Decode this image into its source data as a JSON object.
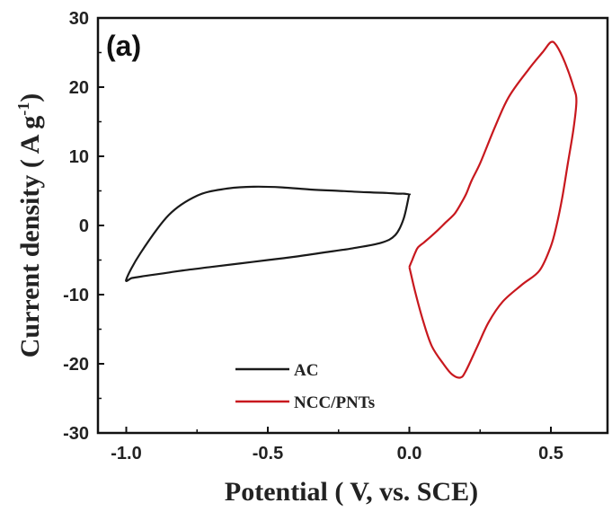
{
  "chart_data": {
    "type": "line",
    "panel_label": "(a)",
    "xlabel": "Potential ( V, vs. SCE)",
    "ylabel_main": "Current density ( A g",
    "ylabel_sup": "-1",
    "ylabel_end": ")",
    "xlim": [
      -1.1,
      0.7
    ],
    "ylim": [
      -30,
      30
    ],
    "xticks": [
      -1.0,
      -0.5,
      0.0,
      0.5
    ],
    "xtick_labels": [
      "-1.0",
      "-0.5",
      "0.0",
      "0.5"
    ],
    "yticks": [
      -30,
      -20,
      -10,
      0,
      10,
      20,
      30
    ],
    "ytick_labels": [
      "-30",
      "-20",
      "-10",
      "0",
      "10",
      "20",
      "30"
    ],
    "legend_position": "lower-center",
    "series": [
      {
        "name": "AC",
        "color": "#1a1a1a",
        "x": [
          0.0,
          -0.02,
          -0.05,
          -0.1,
          -0.2,
          -0.3,
          -0.4,
          -0.5,
          -0.6,
          -0.7,
          -0.8,
          -0.85,
          -0.9,
          -0.95,
          -0.98,
          -1.0,
          -0.95,
          -0.85,
          -0.75,
          -0.65,
          -0.55,
          -0.45,
          -0.35,
          -0.25,
          -0.15,
          -0.08,
          -0.04,
          -0.02,
          0.0,
          0.0
        ],
        "y": [
          4.6,
          1.0,
          -1.4,
          -2.5,
          -3.3,
          -3.9,
          -4.5,
          -5.0,
          -5.5,
          -6.0,
          -6.5,
          -6.8,
          -7.1,
          -7.4,
          -7.6,
          -7.8,
          -4.0,
          1.5,
          4.3,
          5.3,
          5.6,
          5.5,
          5.2,
          5.0,
          4.8,
          4.7,
          4.6,
          4.6,
          4.5,
          4.6
        ]
      },
      {
        "name": "NCC/PNTs",
        "color": "#c8181e",
        "x": [
          0.0,
          0.01,
          0.02,
          0.03,
          0.05,
          0.07,
          0.1,
          0.13,
          0.16,
          0.18,
          0.2,
          0.22,
          0.25,
          0.3,
          0.35,
          0.42,
          0.47,
          0.5,
          0.52,
          0.55,
          0.58,
          0.59,
          0.58,
          0.56,
          0.54,
          0.52,
          0.5,
          0.46,
          0.4,
          0.33,
          0.28,
          0.24,
          0.2,
          0.18,
          0.15,
          0.12,
          0.08,
          0.05,
          0.02,
          0.0
        ],
        "y": [
          -6.0,
          -5.0,
          -4.0,
          -3.2,
          -2.5,
          -1.8,
          -0.7,
          0.5,
          1.7,
          3.0,
          4.5,
          6.5,
          9.0,
          14.0,
          18.5,
          22.5,
          25.0,
          26.5,
          26.0,
          23.5,
          20.0,
          18.0,
          14.0,
          9.0,
          4.0,
          0.0,
          -3.0,
          -6.5,
          -8.5,
          -11.0,
          -14.0,
          -17.5,
          -21.0,
          -22.0,
          -21.5,
          -20.0,
          -17.5,
          -14.0,
          -9.5,
          -6.0
        ]
      }
    ]
  }
}
